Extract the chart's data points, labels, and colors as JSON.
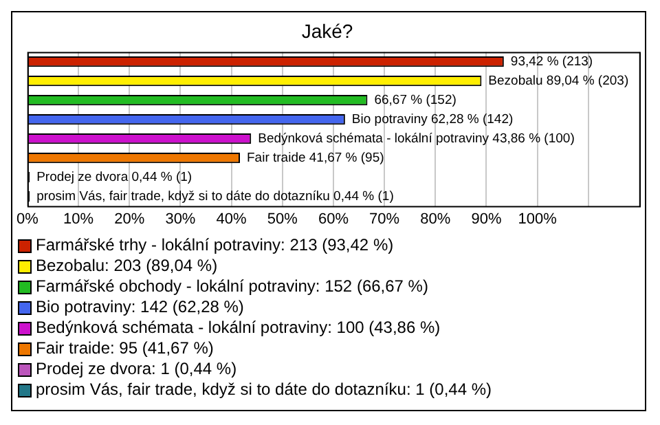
{
  "chart_data": {
    "type": "bar",
    "title": "Jaké?",
    "orientation": "horizontal",
    "categories": [
      null,
      null,
      null,
      null,
      null,
      null,
      null,
      null
    ],
    "series": [
      {
        "name": "Farmářské trhy - lokální potraviny: 213 (93,42 %)",
        "color": "#cc2200",
        "values": [
          93.42,
          null,
          null,
          null,
          null,
          null,
          null,
          null
        ],
        "value_labels": [
          "93,42 % (213)",
          null,
          null,
          null,
          null,
          null,
          null,
          null
        ]
      },
      {
        "name": "Bezobalu: 203 (89,04 %)",
        "color": "#ffee00",
        "values": [
          null,
          89.04,
          null,
          null,
          null,
          null,
          null,
          null
        ],
        "value_labels": [
          null,
          "Bezobalu 89,04 % (203)",
          null,
          null,
          null,
          null,
          null,
          null
        ]
      },
      {
        "name": "Farmářské obchody - lokální potraviny: 152 (66,67 %)",
        "color": "#22bb22",
        "values": [
          null,
          null,
          66.67,
          null,
          null,
          null,
          null,
          null
        ],
        "value_labels": [
          null,
          null,
          "66,67 % (152)",
          null,
          null,
          null,
          null,
          null
        ]
      },
      {
        "name": "Bio potraviny: 142 (62,28 %)",
        "color": "#4466ee",
        "values": [
          null,
          null,
          null,
          62.28,
          null,
          null,
          null,
          null
        ],
        "value_labels": [
          null,
          null,
          null,
          "Bio potraviny 62,28 % (142)",
          null,
          null,
          null,
          null
        ]
      },
      {
        "name": "Bedýnková schémata - lokální potraviny: 100 (43,86 %)",
        "color": "#cc11cc",
        "values": [
          null,
          null,
          null,
          null,
          43.86,
          null,
          null,
          null
        ],
        "value_labels": [
          null,
          null,
          null,
          null,
          "Bedýnková schémata - lokální potraviny 43,86 % (100)",
          null,
          null,
          null
        ]
      },
      {
        "name": "Fair traide: 95 (41,67 %)",
        "color": "#ee7700",
        "values": [
          null,
          null,
          null,
          null,
          null,
          41.67,
          null,
          null
        ],
        "value_labels": [
          null,
          null,
          null,
          null,
          null,
          "Fair traide 41,67 % (95)",
          null,
          null
        ]
      },
      {
        "name": "Prodej ze dvora: 1 (0,44 %)",
        "color": "#bb55bb",
        "values": [
          null,
          null,
          null,
          null,
          null,
          null,
          0.44,
          null
        ],
        "value_labels": [
          null,
          null,
          null,
          null,
          null,
          null,
          "Prodej ze dvora 0,44 % (1)",
          null
        ]
      },
      {
        "name": "prosim Vás, fair trade, když si to dáte do dotazníku: 1 (0,44 %)",
        "color": "#227788",
        "values": [
          null,
          null,
          null,
          null,
          null,
          null,
          null,
          0.44
        ],
        "value_labels": [
          null,
          null,
          null,
          null,
          null,
          null,
          null,
          "prosim Vás, fair trade, když si to dáte do dotazníku 0,44 % (1)"
        ]
      }
    ],
    "xlim": [
      0,
      120
    ],
    "xticks": [
      {
        "value": 0,
        "label": "0%"
      },
      {
        "value": 10,
        "label": "10%"
      },
      {
        "value": 20,
        "label": "20%"
      },
      {
        "value": 30,
        "label": "30%"
      },
      {
        "value": 40,
        "label": "40%"
      },
      {
        "value": 50,
        "label": "50%"
      },
      {
        "value": 60,
        "label": "60%"
      },
      {
        "value": 70,
        "label": "70%"
      },
      {
        "value": 80,
        "label": "80%"
      },
      {
        "value": 90,
        "label": "90%"
      },
      {
        "value": 100,
        "label": "100%"
      },
      {
        "value": 110,
        "label": null
      },
      {
        "value": 120,
        "label": null
      }
    ],
    "grid": "x",
    "legend": "bottom"
  }
}
